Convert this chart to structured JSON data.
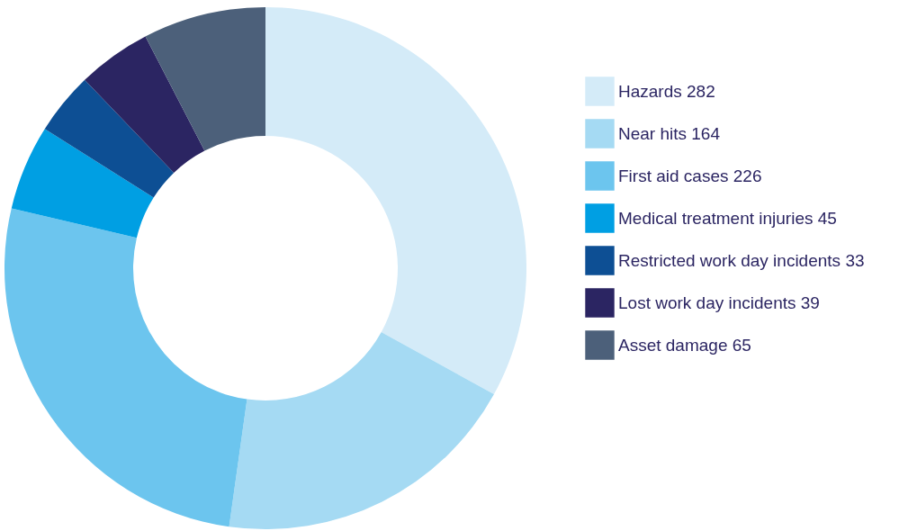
{
  "chart_data": {
    "type": "donut",
    "categories": [
      "Hazards 282",
      "Near hits 164",
      "First aid cases 226",
      "Medical treatment injuries 45",
      "Restricted work day incidents 33",
      "Lost work day incidents 39",
      "Asset damage 65"
    ],
    "values": [
      282,
      164,
      226,
      45,
      33,
      39,
      65
    ],
    "colors": [
      "#d4ebf8",
      "#a5daf3",
      "#6cc5ee",
      "#009fe3",
      "#0d4f94",
      "#2b2562",
      "#4c607a"
    ],
    "legend": "right"
  }
}
